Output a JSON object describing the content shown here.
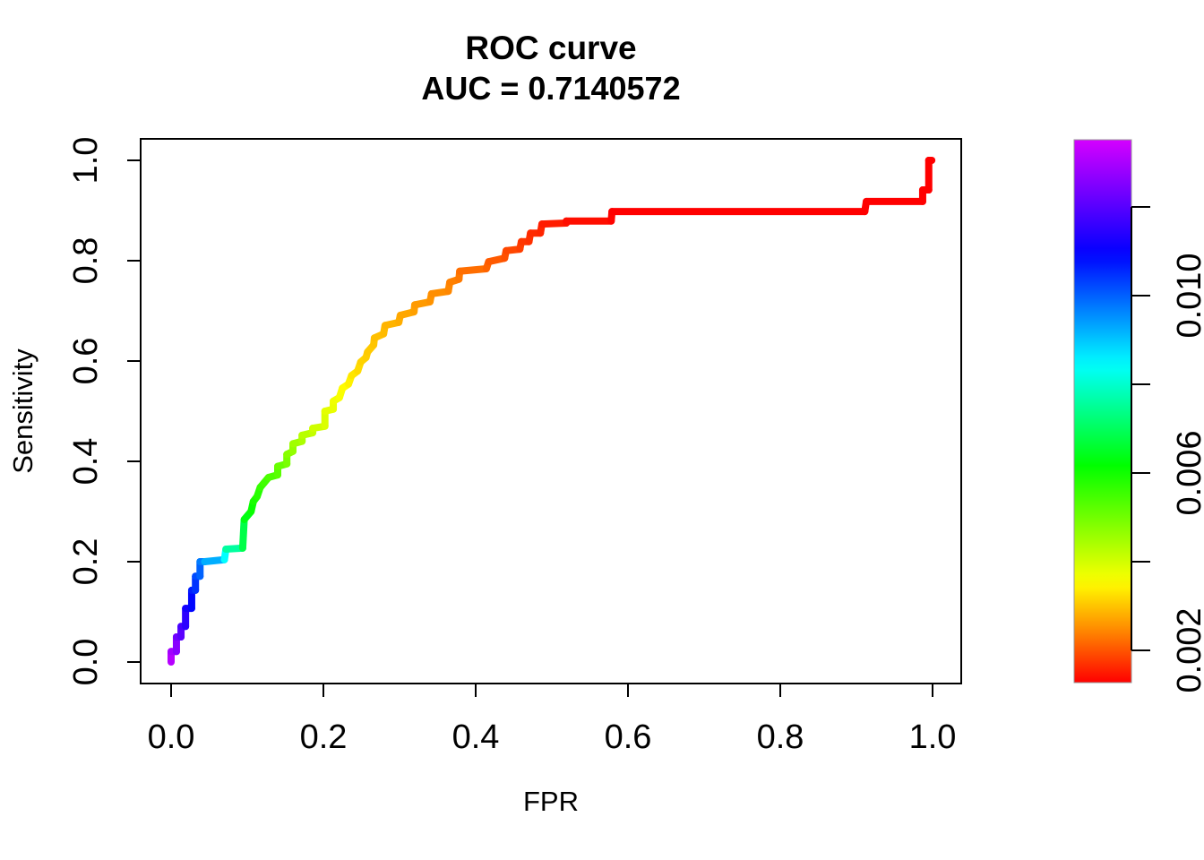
{
  "chart_data": {
    "type": "line",
    "subtype": "roc-step-curve",
    "title": "ROC curve",
    "subtitle": "AUC = 0.7140572",
    "auc": 0.7140572,
    "xlabel": "FPR",
    "ylabel": "Sensitivity",
    "xlim": [
      0.0,
      1.0
    ],
    "ylim": [
      0.0,
      1.0
    ],
    "grid": false,
    "x_ticks": [
      0.0,
      0.2,
      0.4,
      0.6,
      0.8,
      1.0
    ],
    "x_tick_labels": [
      "0.0",
      "0.2",
      "0.4",
      "0.6",
      "0.8",
      "1.0"
    ],
    "y_ticks": [
      0.0,
      0.2,
      0.4,
      0.6,
      0.8,
      1.0
    ],
    "y_tick_labels": [
      "0.0",
      "0.2",
      "0.4",
      "0.6",
      "0.8",
      "1.0"
    ],
    "curve": {
      "name": "ROC curve colored by threshold (rainbow)",
      "point_format": [
        "fpr",
        "sensitivity",
        "color_fraction_along_curve"
      ],
      "points": [
        [
          0.0,
          0.0,
          0.02
        ],
        [
          0.0,
          0.021,
          0.04
        ],
        [
          0.007,
          0.021,
          0.06
        ],
        [
          0.007,
          0.05,
          0.09
        ],
        [
          0.013,
          0.05,
          0.11
        ],
        [
          0.013,
          0.071,
          0.13
        ],
        [
          0.019,
          0.071,
          0.15
        ],
        [
          0.019,
          0.107,
          0.18
        ],
        [
          0.027,
          0.107,
          0.2
        ],
        [
          0.027,
          0.143,
          0.23
        ],
        [
          0.032,
          0.143,
          0.24
        ],
        [
          0.032,
          0.171,
          0.26
        ],
        [
          0.038,
          0.171,
          0.28
        ],
        [
          0.038,
          0.2,
          0.3
        ],
        [
          0.044,
          0.2,
          0.32
        ],
        [
          0.07,
          0.204,
          0.38
        ],
        [
          0.072,
          0.225,
          0.45
        ],
        [
          0.094,
          0.227,
          0.52
        ],
        [
          0.096,
          0.284,
          0.575
        ],
        [
          0.105,
          0.3,
          0.6
        ],
        [
          0.108,
          0.32,
          0.615
        ],
        [
          0.113,
          0.33,
          0.625
        ],
        [
          0.117,
          0.348,
          0.64
        ],
        [
          0.122,
          0.357,
          0.65
        ],
        [
          0.128,
          0.368,
          0.66
        ],
        [
          0.14,
          0.373,
          0.67
        ],
        [
          0.14,
          0.39,
          0.68
        ],
        [
          0.152,
          0.395,
          0.695
        ],
        [
          0.152,
          0.414,
          0.71
        ],
        [
          0.16,
          0.42,
          0.72
        ],
        [
          0.16,
          0.435,
          0.73
        ],
        [
          0.172,
          0.44,
          0.74
        ],
        [
          0.172,
          0.452,
          0.75
        ],
        [
          0.186,
          0.457,
          0.76
        ],
        [
          0.186,
          0.466,
          0.77
        ],
        [
          0.202,
          0.47,
          0.78
        ],
        [
          0.202,
          0.5,
          0.79
        ],
        [
          0.213,
          0.504,
          0.795
        ],
        [
          0.213,
          0.52,
          0.8
        ],
        [
          0.221,
          0.527,
          0.805
        ],
        [
          0.225,
          0.546,
          0.815
        ],
        [
          0.233,
          0.554,
          0.82
        ],
        [
          0.237,
          0.571,
          0.83
        ],
        [
          0.245,
          0.58,
          0.838
        ],
        [
          0.249,
          0.598,
          0.845
        ],
        [
          0.256,
          0.607,
          0.85
        ],
        [
          0.258,
          0.618,
          0.853
        ],
        [
          0.266,
          0.632,
          0.856
        ],
        [
          0.267,
          0.646,
          0.86
        ],
        [
          0.279,
          0.654,
          0.864
        ],
        [
          0.281,
          0.671,
          0.868
        ],
        [
          0.299,
          0.677,
          0.874
        ],
        [
          0.301,
          0.691,
          0.878
        ],
        [
          0.319,
          0.698,
          0.884
        ],
        [
          0.32,
          0.712,
          0.888
        ],
        [
          0.34,
          0.718,
          0.893
        ],
        [
          0.342,
          0.734,
          0.897
        ],
        [
          0.364,
          0.739,
          0.902
        ],
        [
          0.366,
          0.757,
          0.907
        ],
        [
          0.378,
          0.763,
          0.912
        ],
        [
          0.379,
          0.779,
          0.917
        ],
        [
          0.414,
          0.784,
          0.928
        ],
        [
          0.417,
          0.798,
          0.933
        ],
        [
          0.438,
          0.805,
          0.94
        ],
        [
          0.44,
          0.82,
          0.947
        ],
        [
          0.458,
          0.823,
          0.953
        ],
        [
          0.46,
          0.838,
          0.96
        ],
        [
          0.47,
          0.838,
          0.964
        ],
        [
          0.472,
          0.855,
          0.968
        ],
        [
          0.485,
          0.855,
          0.972
        ],
        [
          0.487,
          0.873,
          0.976
        ],
        [
          0.519,
          0.875,
          0.984
        ],
        [
          0.519,
          0.879,
          0.986
        ],
        [
          0.578,
          0.879,
          0.994
        ],
        [
          0.579,
          0.898,
          1.0
        ],
        [
          0.911,
          0.898,
          1.0
        ],
        [
          0.913,
          0.918,
          1.0
        ],
        [
          0.987,
          0.918,
          1.0
        ],
        [
          0.987,
          0.941,
          1.0
        ],
        [
          0.995,
          0.941,
          1.0
        ],
        [
          0.995,
          1.0,
          1.0
        ],
        [
          0.999,
          1.0,
          1.0
        ]
      ]
    },
    "colorbar": {
      "side": "right",
      "orientation": "vertical",
      "value_range": [
        0.0013,
        0.0135
      ],
      "ticks": [
        0.002,
        0.004,
        0.006,
        0.008,
        0.01,
        0.012
      ],
      "tick_labels": [
        "0.002",
        "",
        "0.006",
        "",
        "0.010",
        ""
      ],
      "palette_bottom_to_top": [
        "#FF0000",
        "#FF8000",
        "#FFFF00",
        "#00FF00",
        "#00FFFF",
        "#0000FF",
        "#CC00FF"
      ],
      "colormap_stops_fraction_hue": [
        [
          0,
          0
        ],
        [
          0.09,
          30
        ],
        [
          0.185,
          60
        ],
        [
          0.4,
          120
        ],
        [
          0.585,
          180
        ],
        [
          0.79,
          240
        ],
        [
          1,
          290
        ]
      ]
    },
    "colors": {
      "background": "#FFFFFF",
      "axis": "#000000",
      "text": "#000000"
    }
  }
}
